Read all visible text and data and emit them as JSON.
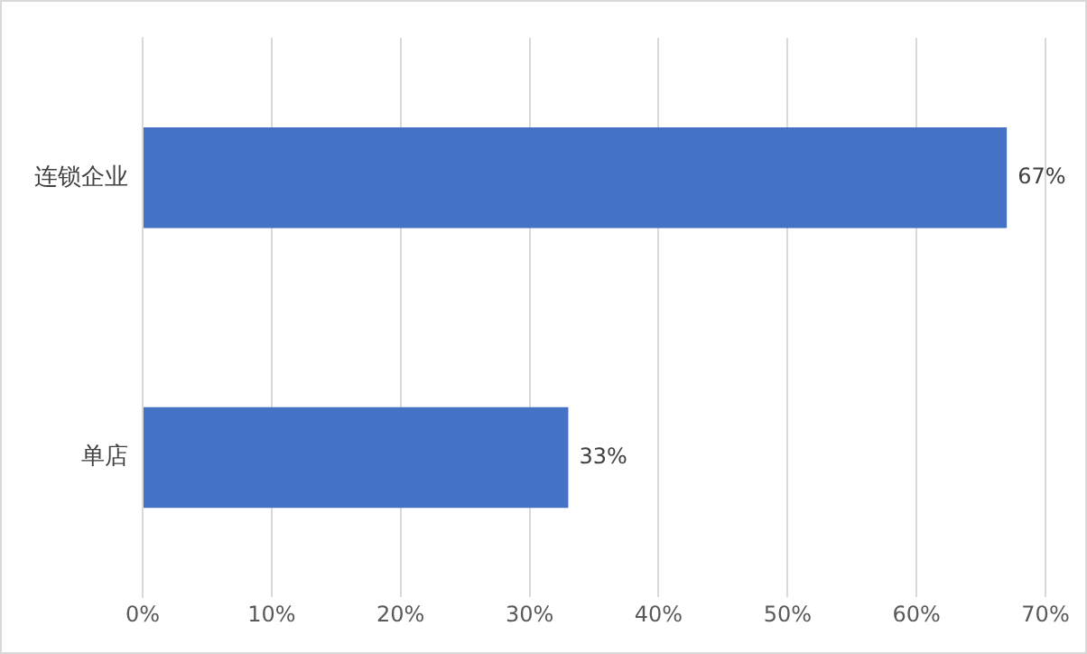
{
  "chart_data": {
    "type": "bar",
    "orientation": "horizontal",
    "categories": [
      "连锁企业",
      "单店"
    ],
    "values": [
      67,
      33
    ],
    "color": "#4472c4",
    "value_labels": [
      "67%",
      "33%"
    ],
    "xlim": [
      0,
      70
    ],
    "xticks": [
      {
        "value": 0,
        "label": "0%"
      },
      {
        "value": 10,
        "label": "10%"
      },
      {
        "value": 20,
        "label": "20%"
      },
      {
        "value": 30,
        "label": "30%"
      },
      {
        "value": 40,
        "label": "40%"
      },
      {
        "value": 50,
        "label": "50%"
      },
      {
        "value": 60,
        "label": "60%"
      },
      {
        "value": 70,
        "label": "70%"
      }
    ],
    "grid": "x",
    "legend": false
  }
}
